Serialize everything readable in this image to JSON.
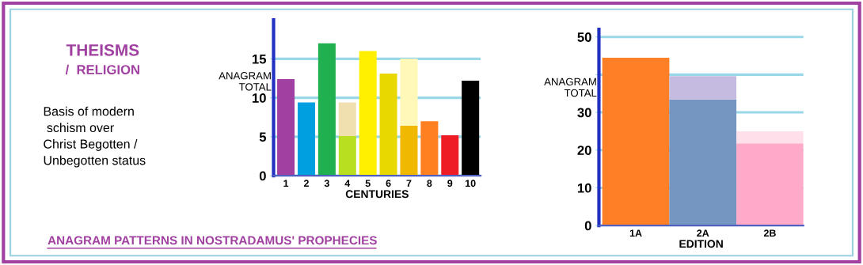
{
  "chart_data": [
    {
      "type": "other",
      "title": "THEISMS",
      "subtitle": "/  RELIGION",
      "annotations": [
        "Basis of modern\n schism over\nChrist Begotten /\nUnbegotten status",
        "ANAGRAM PATTERNS IN NOSTRADAMUS' PROPHECIES"
      ]
    },
    {
      "type": "bar",
      "xlabel": "CENTURIES",
      "ylabel": "ANAGRAM\nTOTAL",
      "categories": [
        "1",
        "2",
        "3",
        "4",
        "5",
        "6",
        "7",
        "8",
        "9",
        "10"
      ],
      "stacked": true,
      "series": [
        {
          "colors": [
            "#a040a0",
            "#00a0e0",
            "#20b050",
            "#b8e020",
            "#fff000",
            "#e8d800",
            "#f0b800",
            "#ff8020",
            "#ee1c24",
            "#000000"
          ],
          "values": [
            12.4,
            9.4,
            17.0,
            5.1,
            16.0,
            13.1,
            6.4,
            7.0,
            5.2,
            12.2
          ]
        },
        {
          "colors": [
            null,
            null,
            null,
            "#f0e0b0",
            null,
            null,
            "#fff8b8",
            null,
            null,
            null
          ],
          "values": [
            null,
            null,
            null,
            4.3,
            null,
            null,
            8.6,
            null,
            null,
            null
          ]
        }
      ],
      "ylim": [
        0,
        20
      ],
      "yticks": [
        0,
        5,
        10,
        15
      ],
      "grid": "y"
    },
    {
      "type": "bar",
      "xlabel": "EDITION",
      "ylabel": "ANAGRAM\nTOTAL",
      "categories": [
        "1A",
        "2A",
        "2B"
      ],
      "stacked": true,
      "series": [
        {
          "colors": [
            "#ff7f27",
            "#7596c0",
            "#ffaac8"
          ],
          "values": [
            44.5,
            33.4,
            21.8
          ]
        },
        {
          "colors": [
            null,
            "#c5bbe0",
            "#ffe0ea"
          ],
          "values": [
            null,
            6.2,
            3.2
          ]
        }
      ],
      "ylim": [
        0,
        52
      ],
      "yticks": [
        0,
        10,
        20,
        30,
        {
          "value": 40,
          "label": null
        },
        50
      ],
      "grid": "y"
    }
  ]
}
